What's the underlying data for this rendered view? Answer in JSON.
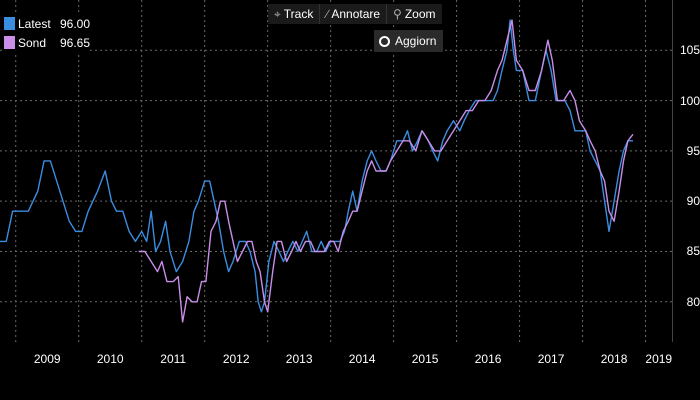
{
  "toolbar": {
    "track_label": "Track",
    "annotate_label": "Annotare",
    "zoom_label": "Zoom",
    "refresh_label": "Aggiorn"
  },
  "legend": [
    {
      "name": "Latest",
      "value": "96.00",
      "color": "#3b8de0"
    },
    {
      "name": "Sond",
      "value": "96.65",
      "color": "#c88ee8"
    }
  ],
  "chart_data": {
    "type": "line",
    "grid": true,
    "ylim": [
      76,
      110
    ],
    "yticks": [
      80,
      85,
      90,
      95,
      100,
      105
    ],
    "xlim": [
      2008.75,
      2019.42
    ],
    "xticks": [
      "2009",
      "2010",
      "2011",
      "2012",
      "2013",
      "2014",
      "2015",
      "2016",
      "2017",
      "2018",
      "2019"
    ],
    "series": [
      {
        "name": "Latest",
        "color": "#3b8de0",
        "points": [
          [
            2008.75,
            86
          ],
          [
            2008.85,
            86
          ],
          [
            2008.95,
            89
          ],
          [
            2009.05,
            89
          ],
          [
            2009.2,
            89
          ],
          [
            2009.35,
            91
          ],
          [
            2009.45,
            94
          ],
          [
            2009.55,
            94
          ],
          [
            2009.7,
            91
          ],
          [
            2009.85,
            88
          ],
          [
            2009.95,
            87
          ],
          [
            2010.05,
            87
          ],
          [
            2010.15,
            89
          ],
          [
            2010.3,
            91
          ],
          [
            2010.42,
            93
          ],
          [
            2010.52,
            90
          ],
          [
            2010.6,
            89
          ],
          [
            2010.7,
            89
          ],
          [
            2010.8,
            87
          ],
          [
            2010.9,
            86
          ],
          [
            2011.0,
            87
          ],
          [
            2011.08,
            86
          ],
          [
            2011.15,
            89
          ],
          [
            2011.22,
            85
          ],
          [
            2011.3,
            86
          ],
          [
            2011.38,
            88
          ],
          [
            2011.45,
            85
          ],
          [
            2011.55,
            83
          ],
          [
            2011.65,
            84
          ],
          [
            2011.75,
            86
          ],
          [
            2011.83,
            89
          ],
          [
            2011.9,
            90
          ],
          [
            2012.0,
            92
          ],
          [
            2012.08,
            92
          ],
          [
            2012.15,
            90
          ],
          [
            2012.22,
            88
          ],
          [
            2012.3,
            85
          ],
          [
            2012.38,
            83
          ],
          [
            2012.45,
            84
          ],
          [
            2012.55,
            86
          ],
          [
            2012.65,
            86
          ],
          [
            2012.72,
            85
          ],
          [
            2012.8,
            83
          ],
          [
            2012.85,
            80
          ],
          [
            2012.9,
            79
          ],
          [
            2012.95,
            80
          ],
          [
            2013.02,
            84
          ],
          [
            2013.1,
            86
          ],
          [
            2013.18,
            85
          ],
          [
            2013.25,
            84
          ],
          [
            2013.32,
            85
          ],
          [
            2013.4,
            86
          ],
          [
            2013.48,
            85
          ],
          [
            2013.55,
            86
          ],
          [
            2013.62,
            87
          ],
          [
            2013.7,
            85
          ],
          [
            2013.78,
            85
          ],
          [
            2013.85,
            86
          ],
          [
            2013.92,
            85
          ],
          [
            2014.0,
            86
          ],
          [
            2014.08,
            86
          ],
          [
            2014.15,
            86
          ],
          [
            2014.22,
            87
          ],
          [
            2014.28,
            89
          ],
          [
            2014.35,
            91
          ],
          [
            2014.42,
            89
          ],
          [
            2014.5,
            92
          ],
          [
            2014.58,
            94
          ],
          [
            2014.65,
            95
          ],
          [
            2014.72,
            94
          ],
          [
            2014.8,
            93
          ],
          [
            2014.88,
            93
          ],
          [
            2014.95,
            94
          ],
          [
            2015.05,
            96
          ],
          [
            2015.15,
            96
          ],
          [
            2015.22,
            97
          ],
          [
            2015.3,
            95
          ],
          [
            2015.38,
            96
          ],
          [
            2015.45,
            97
          ],
          [
            2015.55,
            96
          ],
          [
            2015.62,
            95
          ],
          [
            2015.7,
            94
          ],
          [
            2015.78,
            96
          ],
          [
            2015.85,
            97
          ],
          [
            2015.95,
            98
          ],
          [
            2016.05,
            97
          ],
          [
            2016.12,
            98
          ],
          [
            2016.2,
            99
          ],
          [
            2016.3,
            100
          ],
          [
            2016.4,
            100
          ],
          [
            2016.5,
            100
          ],
          [
            2016.58,
            100
          ],
          [
            2016.65,
            101
          ],
          [
            2016.72,
            103
          ],
          [
            2016.8,
            105
          ],
          [
            2016.85,
            108
          ],
          [
            2016.9,
            105
          ],
          [
            2016.95,
            103
          ],
          [
            2017.05,
            103
          ],
          [
            2017.15,
            100
          ],
          [
            2017.25,
            100
          ],
          [
            2017.35,
            103
          ],
          [
            2017.42,
            105
          ],
          [
            2017.5,
            103
          ],
          [
            2017.58,
            100
          ],
          [
            2017.65,
            100
          ],
          [
            2017.72,
            100
          ],
          [
            2017.8,
            99
          ],
          [
            2017.88,
            97
          ],
          [
            2017.95,
            97
          ],
          [
            2018.05,
            97
          ],
          [
            2018.12,
            95
          ],
          [
            2018.2,
            94
          ],
          [
            2018.28,
            93
          ],
          [
            2018.35,
            90
          ],
          [
            2018.42,
            87
          ],
          [
            2018.5,
            90
          ],
          [
            2018.58,
            93
          ],
          [
            2018.65,
            95
          ],
          [
            2018.72,
            96
          ],
          [
            2018.8,
            96
          ]
        ]
      },
      {
        "name": "Sond",
        "color": "#c88ee8",
        "points": [
          [
            2010.95,
            85
          ],
          [
            2011.05,
            85
          ],
          [
            2011.15,
            84
          ],
          [
            2011.25,
            83
          ],
          [
            2011.32,
            84
          ],
          [
            2011.4,
            82
          ],
          [
            2011.5,
            82
          ],
          [
            2011.58,
            82.5
          ],
          [
            2011.65,
            78
          ],
          [
            2011.72,
            80.5
          ],
          [
            2011.8,
            80
          ],
          [
            2011.88,
            80
          ],
          [
            2011.95,
            82
          ],
          [
            2012.02,
            82
          ],
          [
            2012.1,
            87
          ],
          [
            2012.18,
            88
          ],
          [
            2012.25,
            90
          ],
          [
            2012.32,
            90
          ],
          [
            2012.38,
            88
          ],
          [
            2012.45,
            86
          ],
          [
            2012.52,
            84
          ],
          [
            2012.6,
            85
          ],
          [
            2012.68,
            86
          ],
          [
            2012.75,
            86
          ],
          [
            2012.82,
            84
          ],
          [
            2012.88,
            83
          ],
          [
            2012.95,
            80
          ],
          [
            2013.0,
            79
          ],
          [
            2013.08,
            83
          ],
          [
            2013.15,
            86
          ],
          [
            2013.22,
            86
          ],
          [
            2013.3,
            84
          ],
          [
            2013.38,
            85
          ],
          [
            2013.45,
            86
          ],
          [
            2013.52,
            85
          ],
          [
            2013.6,
            86
          ],
          [
            2013.68,
            86
          ],
          [
            2013.75,
            85
          ],
          [
            2013.82,
            85
          ],
          [
            2013.9,
            85
          ],
          [
            2013.98,
            86
          ],
          [
            2014.05,
            86
          ],
          [
            2014.12,
            85
          ],
          [
            2014.2,
            87
          ],
          [
            2014.28,
            88
          ],
          [
            2014.35,
            89
          ],
          [
            2014.42,
            89
          ],
          [
            2014.5,
            91
          ],
          [
            2014.58,
            93
          ],
          [
            2014.65,
            94
          ],
          [
            2014.72,
            93
          ],
          [
            2014.8,
            93
          ],
          [
            2014.88,
            93
          ],
          [
            2014.95,
            94
          ],
          [
            2015.05,
            95
          ],
          [
            2015.15,
            96
          ],
          [
            2015.25,
            96
          ],
          [
            2015.35,
            95
          ],
          [
            2015.45,
            97
          ],
          [
            2015.55,
            96
          ],
          [
            2015.65,
            95
          ],
          [
            2015.75,
            95
          ],
          [
            2015.85,
            96
          ],
          [
            2015.95,
            97
          ],
          [
            2016.05,
            98
          ],
          [
            2016.15,
            99
          ],
          [
            2016.25,
            99
          ],
          [
            2016.35,
            100
          ],
          [
            2016.45,
            100
          ],
          [
            2016.55,
            101
          ],
          [
            2016.65,
            103
          ],
          [
            2016.72,
            104
          ],
          [
            2016.8,
            106
          ],
          [
            2016.88,
            108
          ],
          [
            2016.95,
            104
          ],
          [
            2017.05,
            103
          ],
          [
            2017.15,
            101
          ],
          [
            2017.25,
            101
          ],
          [
            2017.35,
            103
          ],
          [
            2017.45,
            106
          ],
          [
            2017.52,
            104
          ],
          [
            2017.6,
            100
          ],
          [
            2017.7,
            100
          ],
          [
            2017.8,
            101
          ],
          [
            2017.88,
            100
          ],
          [
            2017.95,
            98
          ],
          [
            2018.05,
            97
          ],
          [
            2018.12,
            96
          ],
          [
            2018.2,
            95
          ],
          [
            2018.28,
            93
          ],
          [
            2018.35,
            92
          ],
          [
            2018.42,
            89
          ],
          [
            2018.5,
            88
          ],
          [
            2018.58,
            91
          ],
          [
            2018.65,
            94
          ],
          [
            2018.72,
            96
          ],
          [
            2018.8,
            96.65
          ]
        ]
      }
    ]
  }
}
